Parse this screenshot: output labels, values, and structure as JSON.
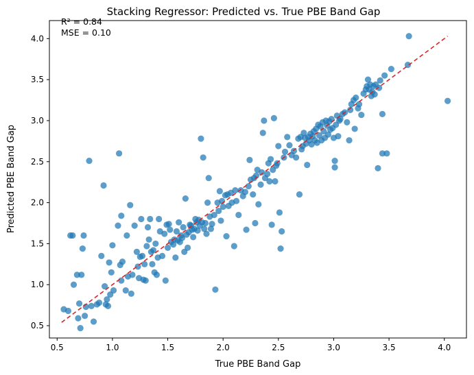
{
  "chart_data": {
    "type": "scatter",
    "title": "Stacking Regressor: Predicted vs. True PBE Band Gap",
    "xlabel": "True PBE Band Gap",
    "ylabel": "Predicted PBE Band Gap",
    "xlim": [
      0.43,
      4.2
    ],
    "ylim": [
      0.35,
      4.22
    ],
    "xticks": [
      0.5,
      1.0,
      1.5,
      2.0,
      2.5,
      3.0,
      3.5,
      4.0
    ],
    "xtick_labels": [
      "0.5",
      "1.0",
      "1.5",
      "2.0",
      "2.5",
      "3.0",
      "3.5",
      "4.0"
    ],
    "yticks": [
      0.5,
      1.0,
      1.5,
      2.0,
      2.5,
      3.0,
      3.5,
      4.0
    ],
    "ytick_labels": [
      "0.5",
      "1.0",
      "1.5",
      "2.0",
      "2.5",
      "3.0",
      "3.5",
      "4.0"
    ],
    "grid": false,
    "annotations": [
      "R² = 0.84",
      "MSE = 0.10"
    ],
    "colors": {
      "points": "#1f77b4",
      "reference_line": "#d62728"
    },
    "reference_line": {
      "style": "dashed",
      "x": [
        0.54,
        4.03
      ],
      "y": [
        0.54,
        4.03
      ]
    },
    "points": [
      [
        0.56,
        0.7
      ],
      [
        0.6,
        0.68
      ],
      [
        0.62,
        1.6
      ],
      [
        0.64,
        1.6
      ],
      [
        0.65,
        1.0
      ],
      [
        0.68,
        1.12
      ],
      [
        0.69,
        0.59
      ],
      [
        0.7,
        0.77
      ],
      [
        0.71,
        0.47
      ],
      [
        0.72,
        1.12
      ],
      [
        0.73,
        1.44
      ],
      [
        0.74,
        1.6
      ],
      [
        0.75,
        0.62
      ],
      [
        0.76,
        0.73
      ],
      [
        0.79,
        2.51
      ],
      [
        0.81,
        0.74
      ],
      [
        0.83,
        0.55
      ],
      [
        0.86,
        0.76
      ],
      [
        0.88,
        0.78
      ],
      [
        0.9,
        1.35
      ],
      [
        0.92,
        2.21
      ],
      [
        0.93,
        0.98
      ],
      [
        0.94,
        0.76
      ],
      [
        0.95,
        0.82
      ],
      [
        0.96,
        0.74
      ],
      [
        0.97,
        1.27
      ],
      [
        0.98,
        0.88
      ],
      [
        0.99,
        1.15
      ],
      [
        1.0,
        1.48
      ],
      [
        1.01,
        0.93
      ],
      [
        1.05,
        1.72
      ],
      [
        1.06,
        2.6
      ],
      [
        1.07,
        1.24
      ],
      [
        1.08,
        1.84
      ],
      [
        1.08,
        1.05
      ],
      [
        1.09,
        1.28
      ],
      [
        1.12,
        0.93
      ],
      [
        1.13,
        1.6
      ],
      [
        1.14,
        1.1
      ],
      [
        1.16,
        1.97
      ],
      [
        1.17,
        0.89
      ],
      [
        1.18,
        1.12
      ],
      [
        1.2,
        1.72
      ],
      [
        1.22,
        1.4
      ],
      [
        1.23,
        1.22
      ],
      [
        1.24,
        1.08
      ],
      [
        1.25,
        1.34
      ],
      [
        1.26,
        1.8
      ],
      [
        1.27,
        1.35
      ],
      [
        1.28,
        1.06
      ],
      [
        1.29,
        1.25
      ],
      [
        1.3,
        1.05
      ],
      [
        1.31,
        1.47
      ],
      [
        1.32,
        1.7
      ],
      [
        1.33,
        1.55
      ],
      [
        1.34,
        1.8
      ],
      [
        1.35,
        1.4
      ],
      [
        1.36,
        1.25
      ],
      [
        1.37,
        1.42
      ],
      [
        1.38,
        1.15
      ],
      [
        1.39,
        1.5
      ],
      [
        1.4,
        1.12
      ],
      [
        1.41,
        1.33
      ],
      [
        1.42,
        1.8
      ],
      [
        1.43,
        1.65
      ],
      [
        1.45,
        1.35
      ],
      [
        1.47,
        1.62
      ],
      [
        1.48,
        1.05
      ],
      [
        1.49,
        1.73
      ],
      [
        1.5,
        1.45
      ],
      [
        1.51,
        1.74
      ],
      [
        1.52,
        1.67
      ],
      [
        1.53,
        1.52
      ],
      [
        1.55,
        1.49
      ],
      [
        1.56,
        1.55
      ],
      [
        1.57,
        1.33
      ],
      [
        1.58,
        1.65
      ],
      [
        1.59,
        1.54
      ],
      [
        1.6,
        1.76
      ],
      [
        1.61,
        1.52
      ],
      [
        1.62,
        1.6
      ],
      [
        1.63,
        1.57
      ],
      [
        1.64,
        1.7
      ],
      [
        1.65,
        1.4
      ],
      [
        1.66,
        2.05
      ],
      [
        1.67,
        1.61
      ],
      [
        1.68,
        1.45
      ],
      [
        1.69,
        1.64
      ],
      [
        1.7,
        1.73
      ],
      [
        1.71,
        1.72
      ],
      [
        1.72,
        1.67
      ],
      [
        1.73,
        1.58
      ],
      [
        1.74,
        1.68
      ],
      [
        1.75,
        1.8
      ],
      [
        1.76,
        1.76
      ],
      [
        1.77,
        1.66
      ],
      [
        1.78,
        1.79
      ],
      [
        1.79,
        1.72
      ],
      [
        1.8,
        2.78
      ],
      [
        1.81,
        1.76
      ],
      [
        1.82,
        2.55
      ],
      [
        1.83,
        1.68
      ],
      [
        1.84,
        1.75
      ],
      [
        1.85,
        1.62
      ],
      [
        1.86,
        2.0
      ],
      [
        1.87,
        2.3
      ],
      [
        1.88,
        1.83
      ],
      [
        1.89,
        1.68
      ],
      [
        1.9,
        1.74
      ],
      [
        1.92,
        1.85
      ],
      [
        1.93,
        0.94
      ],
      [
        1.95,
        2.0
      ],
      [
        1.96,
        1.9
      ],
      [
        1.97,
        2.14
      ],
      [
        1.98,
        1.78
      ],
      [
        1.99,
        2.02
      ],
      [
        2.0,
        1.95
      ],
      [
        2.02,
        2.09
      ],
      [
        2.03,
        1.59
      ],
      [
        2.04,
        2.1
      ],
      [
        2.05,
        1.96
      ],
      [
        2.07,
        2.12
      ],
      [
        2.08,
        2.0
      ],
      [
        2.1,
        1.47
      ],
      [
        2.11,
        2.15
      ],
      [
        2.12,
        2.02
      ],
      [
        2.14,
        1.85
      ],
      [
        2.16,
        2.15
      ],
      [
        2.18,
        2.08
      ],
      [
        2.2,
        2.13
      ],
      [
        2.21,
        1.67
      ],
      [
        2.23,
        2.2
      ],
      [
        2.24,
        2.52
      ],
      [
        2.25,
        2.28
      ],
      [
        2.27,
        2.1
      ],
      [
        2.28,
        2.3
      ],
      [
        2.29,
        1.75
      ],
      [
        2.3,
        2.33
      ],
      [
        2.31,
        2.4
      ],
      [
        2.32,
        1.98
      ],
      [
        2.34,
        2.22
      ],
      [
        2.35,
        2.37
      ],
      [
        2.36,
        2.85
      ],
      [
        2.37,
        3.0
      ],
      [
        2.38,
        2.3
      ],
      [
        2.4,
        2.35
      ],
      [
        2.41,
        2.48
      ],
      [
        2.42,
        2.26
      ],
      [
        2.43,
        2.53
      ],
      [
        2.44,
        1.73
      ],
      [
        2.45,
        2.4
      ],
      [
        2.46,
        3.03
      ],
      [
        2.47,
        2.26
      ],
      [
        2.48,
        2.45
      ],
      [
        2.49,
        2.48
      ],
      [
        2.5,
        2.69
      ],
      [
        2.51,
        1.88
      ],
      [
        2.52,
        1.44
      ],
      [
        2.53,
        1.65
      ],
      [
        2.55,
        2.55
      ],
      [
        2.56,
        2.62
      ],
      [
        2.58,
        2.8
      ],
      [
        2.6,
        2.7
      ],
      [
        2.62,
        2.58
      ],
      [
        2.64,
        2.63
      ],
      [
        2.66,
        2.55
      ],
      [
        2.68,
        2.78
      ],
      [
        2.69,
        2.1
      ],
      [
        2.7,
        2.8
      ],
      [
        2.71,
        2.65
      ],
      [
        2.72,
        2.69
      ],
      [
        2.73,
        2.85
      ],
      [
        2.74,
        2.79
      ],
      [
        2.75,
        2.72
      ],
      [
        2.76,
        2.46
      ],
      [
        2.77,
        2.8
      ],
      [
        2.78,
        2.76
      ],
      [
        2.79,
        2.84
      ],
      [
        2.8,
        2.71
      ],
      [
        2.81,
        2.81
      ],
      [
        2.82,
        2.87
      ],
      [
        2.83,
        2.76
      ],
      [
        2.84,
        2.9
      ],
      [
        2.85,
        2.73
      ],
      [
        2.86,
        2.95
      ],
      [
        2.87,
        2.82
      ],
      [
        2.88,
        2.93
      ],
      [
        2.89,
        2.76
      ],
      [
        2.9,
        2.98
      ],
      [
        2.91,
        2.87
      ],
      [
        2.92,
        2.79
      ],
      [
        2.93,
        3.0
      ],
      [
        2.94,
        2.94
      ],
      [
        2.95,
        2.83
      ],
      [
        2.96,
        2.99
      ],
      [
        2.97,
        2.89
      ],
      [
        2.98,
        3.02
      ],
      [
        2.99,
        2.91
      ],
      [
        3.0,
        2.79
      ],
      [
        3.01,
        2.43
      ],
      [
        3.01,
        2.51
      ],
      [
        3.02,
        2.95
      ],
      [
        3.03,
        3.06
      ],
      [
        3.04,
        2.81
      ],
      [
        3.05,
        3.0
      ],
      [
        3.06,
        3.02
      ],
      [
        3.08,
        3.08
      ],
      [
        3.1,
        3.1
      ],
      [
        3.12,
        2.98
      ],
      [
        3.14,
        2.76
      ],
      [
        3.15,
        3.13
      ],
      [
        3.16,
        3.2
      ],
      [
        3.18,
        3.25
      ],
      [
        3.19,
        2.9
      ],
      [
        3.2,
        3.28
      ],
      [
        3.22,
        3.15
      ],
      [
        3.23,
        3.2
      ],
      [
        3.25,
        3.07
      ],
      [
        3.27,
        3.33
      ],
      [
        3.29,
        3.38
      ],
      [
        3.3,
        3.42
      ],
      [
        3.31,
        3.5
      ],
      [
        3.32,
        3.38
      ],
      [
        3.33,
        3.44
      ],
      [
        3.34,
        3.3
      ],
      [
        3.35,
        3.35
      ],
      [
        3.36,
        3.42
      ],
      [
        3.37,
        3.32
      ],
      [
        3.38,
        3.44
      ],
      [
        3.4,
        2.42
      ],
      [
        3.41,
        3.4
      ],
      [
        3.42,
        3.49
      ],
      [
        3.44,
        2.6
      ],
      [
        3.44,
        3.08
      ],
      [
        3.46,
        3.55
      ],
      [
        3.48,
        2.6
      ],
      [
        3.52,
        3.63
      ],
      [
        3.67,
        3.68
      ],
      [
        3.68,
        4.03
      ],
      [
        4.03,
        3.24
      ]
    ]
  }
}
